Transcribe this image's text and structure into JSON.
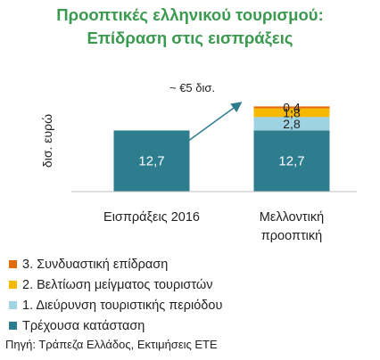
{
  "title_lines": [
    "Προοπτικές ελληνικού τουρισμού:",
    "Επίδραση στις εισπράξεις"
  ],
  "source": "Πηγή: Τράπεζα Ελλάδος, Εκτιμήσεις ΕΤΕ",
  "chart_data": {
    "type": "bar",
    "stacked": true,
    "categories": [
      "Εισπράξεις 2016",
      "Μελλοντική προοπτική"
    ],
    "category_label_lines": [
      [
        "Εισπράξεις 2016"
      ],
      [
        "Μελλοντική",
        "προοπτική"
      ]
    ],
    "ylabel": "δισ. ευρώ",
    "series": [
      {
        "name": "Τρέχουσα κατάσταση",
        "values": [
          12.7,
          12.7
        ],
        "labels": [
          "12,7",
          "12,7"
        ],
        "color": "#2e7d8f",
        "label_color": "#ffffff"
      },
      {
        "name": "1. Διεύρυνση τουριστικής περιόδου",
        "values": [
          0,
          2.8
        ],
        "labels": [
          "",
          "2,8"
        ],
        "color": "#9fd3e3",
        "label_color": "#222222"
      },
      {
        "name": "2. Βελτίωση μείγματος τουριστών",
        "values": [
          0,
          1.8
        ],
        "labels": [
          "",
          "1,8"
        ],
        "color": "#f7b800",
        "label_color": "#222222"
      },
      {
        "name": "3. Συνδυαστική επίδραση",
        "values": [
          0,
          0.4
        ],
        "labels": [
          "",
          "0,4"
        ],
        "color": "#e36c0a",
        "label_color": "#222222"
      }
    ],
    "legend_order": [
      3,
      2,
      1,
      0
    ],
    "legend_position": "bottom",
    "annotation": {
      "text": "~ €5 δισ.",
      "arrow": "from first bar top to second bar"
    },
    "grid": false,
    "y_axis_visible": false
  }
}
